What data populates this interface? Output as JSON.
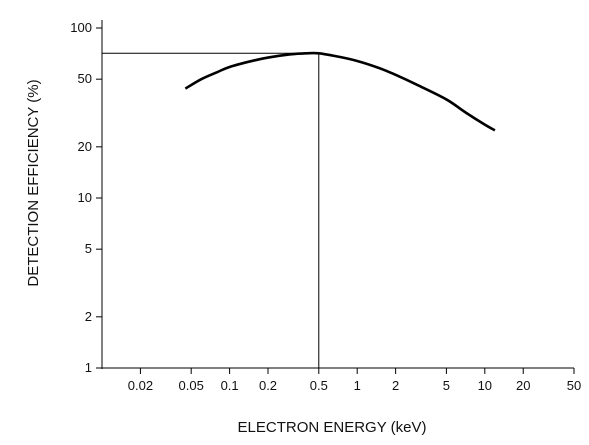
{
  "chart_data": {
    "type": "line",
    "title": "",
    "xlabel": "ELECTRON ENERGY (keV)",
    "ylabel": "DETECTION EFFICIENCY (%)",
    "xscale": "log",
    "yscale": "log",
    "xlim": [
      0.01,
      50
    ],
    "ylim": [
      1,
      100
    ],
    "grid": false,
    "legend": "none",
    "x_ticks": [
      {
        "value": 0.02,
        "label": "0.02"
      },
      {
        "value": 0.05,
        "label": "0.05"
      },
      {
        "value": 0.1,
        "label": "0.1"
      },
      {
        "value": 0.2,
        "label": "0.2"
      },
      {
        "value": 0.5,
        "label": "0.5"
      },
      {
        "value": 1,
        "label": "1"
      },
      {
        "value": 2,
        "label": "2"
      },
      {
        "value": 5,
        "label": "5"
      },
      {
        "value": 10,
        "label": "10"
      },
      {
        "value": 20,
        "label": "20"
      },
      {
        "value": 50,
        "label": "50"
      }
    ],
    "y_ticks": [
      {
        "value": 1,
        "label": "1"
      },
      {
        "value": 2,
        "label": "2"
      },
      {
        "value": 5,
        "label": "5"
      },
      {
        "value": 10,
        "label": "10"
      },
      {
        "value": 20,
        "label": "20"
      },
      {
        "value": 50,
        "label": "50"
      },
      {
        "value": 100,
        "label": "100"
      }
    ],
    "series": [
      {
        "x": [
          0.045,
          0.06,
          0.08,
          0.1,
          0.15,
          0.2,
          0.3,
          0.4,
          0.5,
          0.7,
          1,
          1.5,
          2,
          3,
          5,
          7,
          10,
          12
        ],
        "y": [
          44,
          50,
          55,
          59,
          64,
          67,
          70,
          71,
          71,
          68,
          64,
          58,
          53,
          46,
          38,
          32,
          27,
          25
        ]
      }
    ],
    "reference_lines": [
      {
        "x": 0.5,
        "y": 71
      }
    ],
    "line_color": "#000000"
  }
}
